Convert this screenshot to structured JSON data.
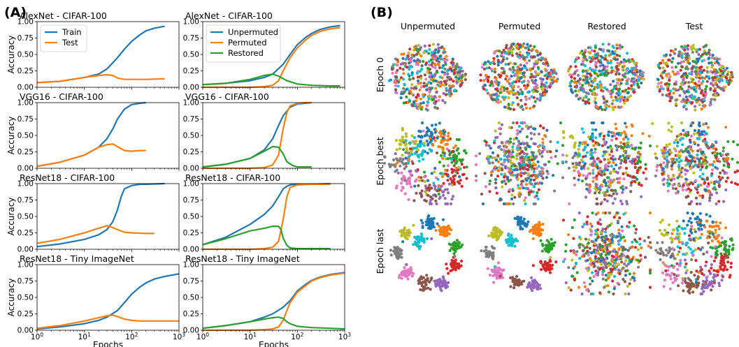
{
  "panel_a_label": "(A)",
  "panel_b_label": "(B)",
  "colors": {
    "blue": "#1f77b4",
    "orange": "#ff7f0e",
    "green": "#2ca02c"
  },
  "chart_data": [
    {
      "type": "line",
      "title": "AlexNet - CIFAR-100",
      "xscale": "log",
      "xlim": [
        1,
        1000
      ],
      "ylim": [
        0,
        1
      ],
      "ylabel": "Accuracy",
      "xlabel": "",
      "legend": "top-left",
      "series": [
        {
          "name": "Train",
          "color": "#1f77b4",
          "x": [
            1,
            3,
            10,
            20,
            30,
            50,
            70,
            100,
            150,
            200,
            300,
            500
          ],
          "y": [
            0.07,
            0.09,
            0.15,
            0.2,
            0.28,
            0.45,
            0.58,
            0.7,
            0.8,
            0.86,
            0.9,
            0.93
          ]
        },
        {
          "name": "Test",
          "color": "#ff7f0e",
          "x": [
            1,
            3,
            10,
            20,
            30,
            40,
            50,
            70,
            100,
            200,
            500
          ],
          "y": [
            0.07,
            0.09,
            0.15,
            0.18,
            0.19,
            0.18,
            0.14,
            0.12,
            0.12,
            0.12,
            0.13
          ]
        }
      ]
    },
    {
      "type": "line",
      "title": "AlexNet - CIFAR-100",
      "xscale": "log",
      "xlim": [
        1,
        1000
      ],
      "ylim": [
        0,
        1
      ],
      "ylabel": "",
      "xlabel": "",
      "legend": "top-left",
      "series": [
        {
          "name": "Unpermuted",
          "color": "#1f77b4",
          "x": [
            1,
            3,
            10,
            20,
            30,
            50,
            70,
            100,
            150,
            200,
            300,
            500,
            800
          ],
          "y": [
            0.04,
            0.06,
            0.1,
            0.15,
            0.2,
            0.35,
            0.5,
            0.65,
            0.76,
            0.82,
            0.88,
            0.92,
            0.94
          ]
        },
        {
          "name": "Permuted",
          "color": "#ff7f0e",
          "x": [
            1,
            10,
            20,
            30,
            40,
            50,
            70,
            100,
            150,
            200,
            300,
            500,
            800
          ],
          "y": [
            0.0,
            0.0,
            0.01,
            0.03,
            0.1,
            0.25,
            0.45,
            0.6,
            0.72,
            0.79,
            0.85,
            0.89,
            0.91
          ]
        },
        {
          "name": "Restored",
          "color": "#2ca02c",
          "x": [
            1,
            3,
            10,
            20,
            30,
            40,
            60,
            100,
            200,
            500,
            800
          ],
          "y": [
            0.04,
            0.06,
            0.12,
            0.18,
            0.2,
            0.17,
            0.1,
            0.05,
            0.03,
            0.02,
            0.02
          ]
        }
      ]
    },
    {
      "type": "line",
      "title": "VGG16 - CIFAR-100",
      "xscale": "log",
      "xlim": [
        1,
        1000
      ],
      "ylim": [
        0,
        1
      ],
      "ylabel": "Accuracy",
      "xlabel": "",
      "legend": "none",
      "series": [
        {
          "name": "",
          "color": "#1f77b4",
          "x": [
            1,
            3,
            10,
            20,
            30,
            40,
            50,
            70,
            100,
            150,
            200
          ],
          "y": [
            0.03,
            0.09,
            0.2,
            0.32,
            0.45,
            0.6,
            0.75,
            0.9,
            0.97,
            0.99,
            1.0
          ]
        },
        {
          "name": "",
          "color": "#ff7f0e",
          "x": [
            1,
            3,
            10,
            20,
            30,
            40,
            50,
            70,
            100,
            150,
            200
          ],
          "y": [
            0.03,
            0.09,
            0.2,
            0.32,
            0.36,
            0.37,
            0.33,
            0.27,
            0.26,
            0.27,
            0.27
          ]
        }
      ]
    },
    {
      "type": "line",
      "title": "VGG16 - CIFAR-100",
      "xscale": "log",
      "xlim": [
        1,
        1000
      ],
      "ylim": [
        0,
        1
      ],
      "ylabel": "",
      "xlabel": "",
      "legend": "none",
      "series": [
        {
          "name": "",
          "color": "#1f77b4",
          "x": [
            1,
            3,
            10,
            20,
            30,
            40,
            50,
            70,
            100,
            150,
            200
          ],
          "y": [
            0.02,
            0.06,
            0.15,
            0.28,
            0.45,
            0.65,
            0.8,
            0.93,
            0.98,
            0.99,
            1.0
          ]
        },
        {
          "name": "",
          "color": "#ff7f0e",
          "x": [
            1,
            10,
            20,
            30,
            40,
            50,
            60,
            70,
            100,
            150,
            200
          ],
          "y": [
            0.0,
            0.0,
            0.01,
            0.05,
            0.2,
            0.6,
            0.85,
            0.95,
            0.99,
            1.0,
            1.0
          ]
        },
        {
          "name": "",
          "color": "#2ca02c",
          "x": [
            1,
            3,
            10,
            20,
            30,
            40,
            50,
            60,
            80,
            100,
            150,
            200
          ],
          "y": [
            0.02,
            0.06,
            0.15,
            0.26,
            0.33,
            0.32,
            0.22,
            0.1,
            0.04,
            0.02,
            0.02,
            0.02
          ]
        }
      ]
    },
    {
      "type": "line",
      "title": "ResNet18 - CIFAR-100",
      "xscale": "log",
      "xlim": [
        1,
        1000
      ],
      "ylim": [
        0,
        1
      ],
      "ylabel": "Accuracy",
      "xlabel": "",
      "legend": "none",
      "series": [
        {
          "name": "",
          "color": "#1f77b4",
          "x": [
            1,
            3,
            10,
            20,
            30,
            40,
            50,
            60,
            70,
            100,
            150,
            200,
            500
          ],
          "y": [
            0.04,
            0.08,
            0.15,
            0.22,
            0.3,
            0.42,
            0.6,
            0.8,
            0.92,
            0.97,
            0.99,
            0.99,
            1.0
          ]
        },
        {
          "name": "",
          "color": "#ff7f0e",
          "x": [
            1,
            3,
            10,
            20,
            30,
            40,
            50,
            70,
            100,
            200,
            300
          ],
          "y": [
            0.09,
            0.15,
            0.25,
            0.32,
            0.36,
            0.33,
            0.3,
            0.26,
            0.25,
            0.24,
            0.24
          ]
        }
      ]
    },
    {
      "type": "line",
      "title": "ResNet18 - CIFAR-100",
      "xscale": "log",
      "xlim": [
        1,
        1000
      ],
      "ylim": [
        0,
        1
      ],
      "ylabel": "",
      "xlabel": "",
      "legend": "none",
      "series": [
        {
          "name": "",
          "color": "#1f77b4",
          "x": [
            1,
            3,
            10,
            20,
            30,
            40,
            50,
            60,
            70,
            100,
            200,
            500
          ],
          "y": [
            0.07,
            0.18,
            0.38,
            0.53,
            0.66,
            0.8,
            0.92,
            0.96,
            0.98,
            0.99,
            0.99,
            1.0
          ]
        },
        {
          "name": "",
          "color": "#ff7f0e",
          "x": [
            1,
            10,
            20,
            30,
            40,
            50,
            60,
            70,
            100,
            200,
            500
          ],
          "y": [
            0.0,
            0.0,
            0.01,
            0.03,
            0.12,
            0.45,
            0.8,
            0.94,
            0.98,
            0.99,
            0.99
          ]
        },
        {
          "name": "",
          "color": "#2ca02c",
          "x": [
            1,
            3,
            10,
            20,
            30,
            40,
            45,
            50,
            60,
            70,
            100,
            200,
            500
          ],
          "y": [
            0.07,
            0.16,
            0.28,
            0.32,
            0.35,
            0.35,
            0.3,
            0.17,
            0.06,
            0.02,
            0.01,
            0.01,
            0.01
          ]
        }
      ]
    },
    {
      "type": "line",
      "title": "ResNet18 - Tiny ImageNet",
      "xscale": "log",
      "xlim": [
        1,
        1000
      ],
      "ylim": [
        0,
        1
      ],
      "ylabel": "Accuracy",
      "xlabel": "Epochs",
      "legend": "none",
      "series": [
        {
          "name": "",
          "color": "#1f77b4",
          "x": [
            1,
            3,
            10,
            20,
            30,
            50,
            70,
            100,
            150,
            200,
            300,
            500,
            1000
          ],
          "y": [
            0.02,
            0.05,
            0.1,
            0.15,
            0.2,
            0.3,
            0.42,
            0.55,
            0.66,
            0.72,
            0.78,
            0.82,
            0.86
          ]
        },
        {
          "name": "",
          "color": "#ff7f0e",
          "x": [
            1,
            3,
            10,
            20,
            30,
            40,
            50,
            70,
            100,
            150,
            200,
            500,
            1000
          ],
          "y": [
            0.03,
            0.07,
            0.14,
            0.19,
            0.22,
            0.23,
            0.21,
            0.17,
            0.15,
            0.14,
            0.14,
            0.14,
            0.14
          ]
        }
      ]
    },
    {
      "type": "line",
      "title": "ResNet18 - Tiny ImageNet",
      "xscale": "log",
      "xlim": [
        1,
        1000
      ],
      "ylim": [
        0,
        1
      ],
      "ylabel": "",
      "xlabel": "Epochs",
      "legend": "none",
      "series": [
        {
          "name": "",
          "color": "#1f77b4",
          "x": [
            1,
            3,
            10,
            20,
            30,
            50,
            70,
            100,
            150,
            200,
            300,
            500,
            1000
          ],
          "y": [
            0.03,
            0.07,
            0.13,
            0.2,
            0.25,
            0.35,
            0.45,
            0.6,
            0.7,
            0.76,
            0.81,
            0.85,
            0.88
          ]
        },
        {
          "name": "",
          "color": "#ff7f0e",
          "x": [
            1,
            10,
            20,
            30,
            40,
            50,
            60,
            70,
            100,
            150,
            200,
            300,
            500,
            1000
          ],
          "y": [
            0.0,
            0.0,
            0.01,
            0.02,
            0.05,
            0.15,
            0.3,
            0.42,
            0.58,
            0.68,
            0.75,
            0.8,
            0.84,
            0.87
          ]
        },
        {
          "name": "",
          "color": "#2ca02c",
          "x": [
            1,
            3,
            10,
            20,
            30,
            40,
            50,
            60,
            70,
            100,
            200,
            500,
            1000
          ],
          "y": [
            0.03,
            0.07,
            0.13,
            0.17,
            0.19,
            0.2,
            0.18,
            0.13,
            0.1,
            0.06,
            0.04,
            0.03,
            0.02
          ]
        }
      ]
    },
    {
      "type": "scatter",
      "columns": [
        "Unpermuted",
        "Permuted",
        "Restored",
        "Test"
      ],
      "rows": [
        "Epoch 0",
        "Epoch best",
        "Epoch last"
      ],
      "palette": [
        "#1f77b4",
        "#ff7f0e",
        "#2ca02c",
        "#d62728",
        "#9467bd",
        "#8c564b",
        "#e377c2",
        "#7f7f7f",
        "#bcbd22",
        "#17becf"
      ]
    }
  ]
}
